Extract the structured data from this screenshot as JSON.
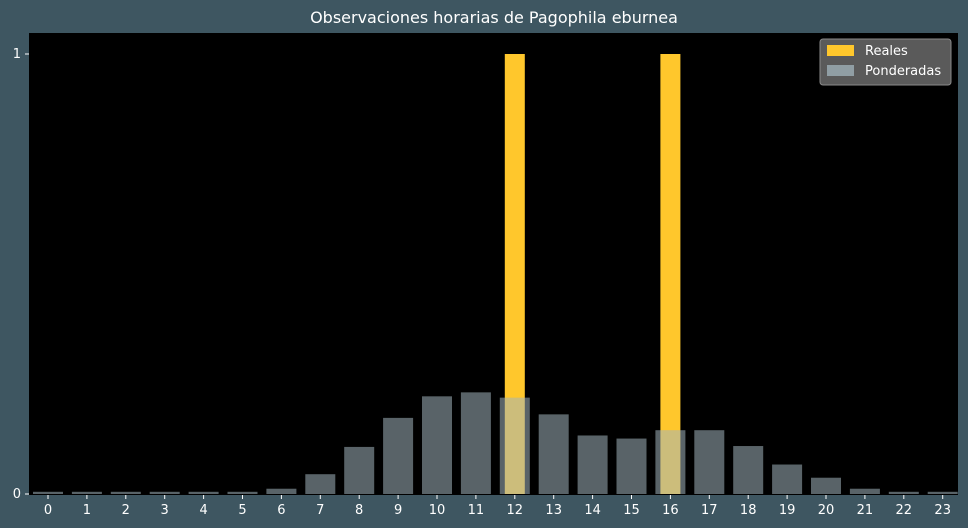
{
  "chart_data": {
    "type": "bar",
    "title": "Observaciones horarias de Pagophila eburnea",
    "xlabel": "",
    "ylabel": "",
    "categories": [
      "0",
      "1",
      "2",
      "3",
      "4",
      "5",
      "6",
      "7",
      "8",
      "9",
      "10",
      "11",
      "12",
      "13",
      "14",
      "15",
      "16",
      "17",
      "18",
      "19",
      "20",
      "21",
      "22",
      "23"
    ],
    "series": [
      {
        "name": "Reales",
        "color": "#ffc72c",
        "values": [
          0,
          0,
          0,
          0,
          0,
          0,
          0,
          0,
          0,
          0,
          0,
          0,
          1,
          0,
          0,
          0,
          1,
          0,
          0,
          0,
          0,
          0,
          0,
          0
        ]
      },
      {
        "name": "Ponderadas",
        "color": "#a3b5bd",
        "values": [
          0.005,
          0.005,
          0.005,
          0.005,
          0.005,
          0.005,
          0.012,
          0.045,
          0.107,
          0.173,
          0.222,
          0.231,
          0.219,
          0.181,
          0.133,
          0.126,
          0.145,
          0.145,
          0.109,
          0.067,
          0.037,
          0.012,
          0.005,
          0.005
        ]
      }
    ],
    "ylim": [
      0,
      1
    ],
    "yticks": [
      "0",
      "1"
    ],
    "grid": false,
    "legend_position": "top-right",
    "background": "#000000",
    "figure_background": "#3e5661"
  }
}
